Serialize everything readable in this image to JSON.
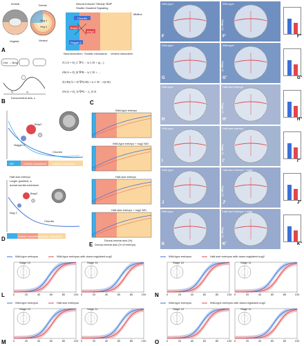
{
  "panel_letters": {
    "A": "A",
    "B": "B",
    "C": "C",
    "D": "D",
    "E": "E",
    "F": "F",
    "F2": "F'",
    "F3": "F''",
    "G": "G",
    "G2": "G'",
    "G3": "G''",
    "H": "H",
    "H2": "H'",
    "H3": "H''",
    "I": "I",
    "I2": "I'",
    "I3": "I''",
    "J": "J",
    "J2": "J'",
    "J3": "J''",
    "K": "K",
    "K2": "K'",
    "K3": "K''",
    "L": "L",
    "M": "M",
    "N": "N",
    "O": "O"
  },
  "panel_a": {
    "animal": "Animal",
    "vegetal": "Vegetal",
    "dorsal": "Dorsal",
    "ventral": "Ventral",
    "veg1": "Veg 1",
    "veg2": "Veg 2",
    "mesoderm": "Mesoderm",
    "yolk": "Yolk",
    "hinge": "Hinge",
    "title_line1": "Neural-Induced 'Steady' BMP",
    "title_line2": "Shuttle Gradient Signaling",
    "chordin": "Chordin",
    "bmp4": "Bmp4",
    "bmp2": "Bmp2",
    "noggin": "Noggin 1",
    "tll": "Tll",
    "neuro": "Neuroectoderm",
    "somite": "Somitic mesoderm",
    "ventral_meso": "Ventral mesoderm",
    "midline": "Midline"
  },
  "panel_b": {
    "chd": "Chd → Bmp",
    "x1": "x₁",
    "x2": "x₂",
    "xmax": "x_max",
    "axis": "Dorsoventral axis, x"
  },
  "panel_c": {
    "eq1": "∂C/∂t = D_C ∇²C − k C B + η(...)",
    "eq2": "∂B/∂t = D_B ∇²B − k C B + …",
    "eq3": "∂[CB]/∂t = D ∇²[CB] + k C B − λ[CB]",
    "eq4": "∂N/∂t = D_N ∇²N − λ_N N"
  },
  "panel_d": {
    "bmp2": "Bmp2",
    "noggin": "Noggin 2",
    "chordin": "Chordin",
    "ns": "NS",
    "somite": "Somitic mesoderm",
    "lateral": "Lateral mesoderm",
    "ylabel_top": "Concentration",
    "ylabel_bottom": "Concentration",
    "half_size": "Half-size embryo",
    "half_sub": "Larger gradient, a",
    "half_sub2": "dorsal somite-extension",
    "small_bmp": "Bmp2",
    "small_nog": "Nog 2",
    "small_chd": "Chordin",
    "somite_small": "Somite mesoderm",
    "lateral_small": "Lateral mesoderm"
  },
  "panel_e": {
    "t1": "Wild-type embryo",
    "t2": "Wild-type embryo + nog2 MO",
    "t3": "Half-size embryo",
    "t4": "Half-size embryo + nog2 MO",
    "xlabel": "Dorsal-ventral axis (%)",
    "legend1": "Dorsal-ventral axis (% of embryo)",
    "legend2": "Lateral mesoderm model (from panel)",
    "ylabel": "Somite fraction"
  },
  "photo_rows": [
    {
      "id": "F",
      "stage": "Stage 10",
      "left": "Wild-type",
      "right": "Wild-type",
      "fill": "#6f8fc0"
    },
    {
      "id": "G",
      "stage": "Stage 11",
      "left": "Wild-type",
      "right": "Wild-type",
      "fill": "#7a98c6"
    },
    {
      "id": "H",
      "stage": "Stage 10",
      "left": "Wild-type",
      "right": "Half-size embryo",
      "fill": "#a9b7d4"
    },
    {
      "id": "I",
      "stage": "Stage 11",
      "left": "Wild-type",
      "right": "Half-size embryo",
      "fill": "#a4b5d2"
    },
    {
      "id": "J",
      "stage": "Stage 10",
      "left": "Wild-type",
      "right": "Half-size embryo + nog2",
      "fill": "#98aacd"
    },
    {
      "id": "K",
      "stage": "Stage 11",
      "left": "Wild-type",
      "right": "Half-size embryo + nog2",
      "fill": "#98aacd"
    }
  ],
  "stage_labels": {
    "s10": "Stage 10",
    "s11": "Stage 11",
    "s10b": "Stage 10",
    "s11b": "Stage 11"
  },
  "bottom_panels": {
    "L": {
      "legend_a": "Wild-type embryos",
      "legend_b": "Wild-type embryos with down-regulated nog2",
      "stage_left": "Stage 10",
      "stage_right": "Stage 11",
      "ylabel": "Somite gene fraction",
      "xticks": [
        "0",
        "20",
        "40",
        "60",
        "80",
        "100"
      ],
      "xlabel": "Dorsal-ventral axis (%)"
    },
    "M": {
      "legend_a": "Wild-type embryos",
      "legend_b": "Half-size embryos",
      "stage_left": "Stage 10",
      "stage_right": "Stage 11",
      "ylabel": "Somite gene fraction",
      "xticks": [
        "0",
        "20",
        "40",
        "60",
        "80",
        "100"
      ],
      "xlabel": "Dorsal-ventral axis (%)"
    },
    "N": {
      "legend_a": "Wild-type embryos",
      "legend_b": "Half-size embryos with down-regulated nog2",
      "stage_left": "Stage 10",
      "stage_right": "Stage 11",
      "ylabel": "Somite gene fraction",
      "xticks": [
        "0",
        "20",
        "40",
        "60",
        "80",
        "100"
      ],
      "xlabel": "Dorsal-ventral axis (%)"
    },
    "O": {
      "legend_a": "Wild-type embryos",
      "legend_b": "Wild-type embryos with down-regulated nog2",
      "stage_left": "Stage 10",
      "stage_right": "Stage 11",
      "ylabel": "Somite gene fraction",
      "xticks": [
        "0",
        "20",
        "40",
        "60",
        "80",
        "100"
      ],
      "xlabel": "Dorsal-ventral axis (%)"
    }
  },
  "colors": {
    "blue_curve": "#3a6fd8",
    "red_curve": "#e0474c",
    "blue_band": "#a8c3ec",
    "red_band": "#f2b1b1",
    "neuro": "#3aaee8",
    "somite": "#f39a84",
    "ventral": "#fbd79f"
  }
}
